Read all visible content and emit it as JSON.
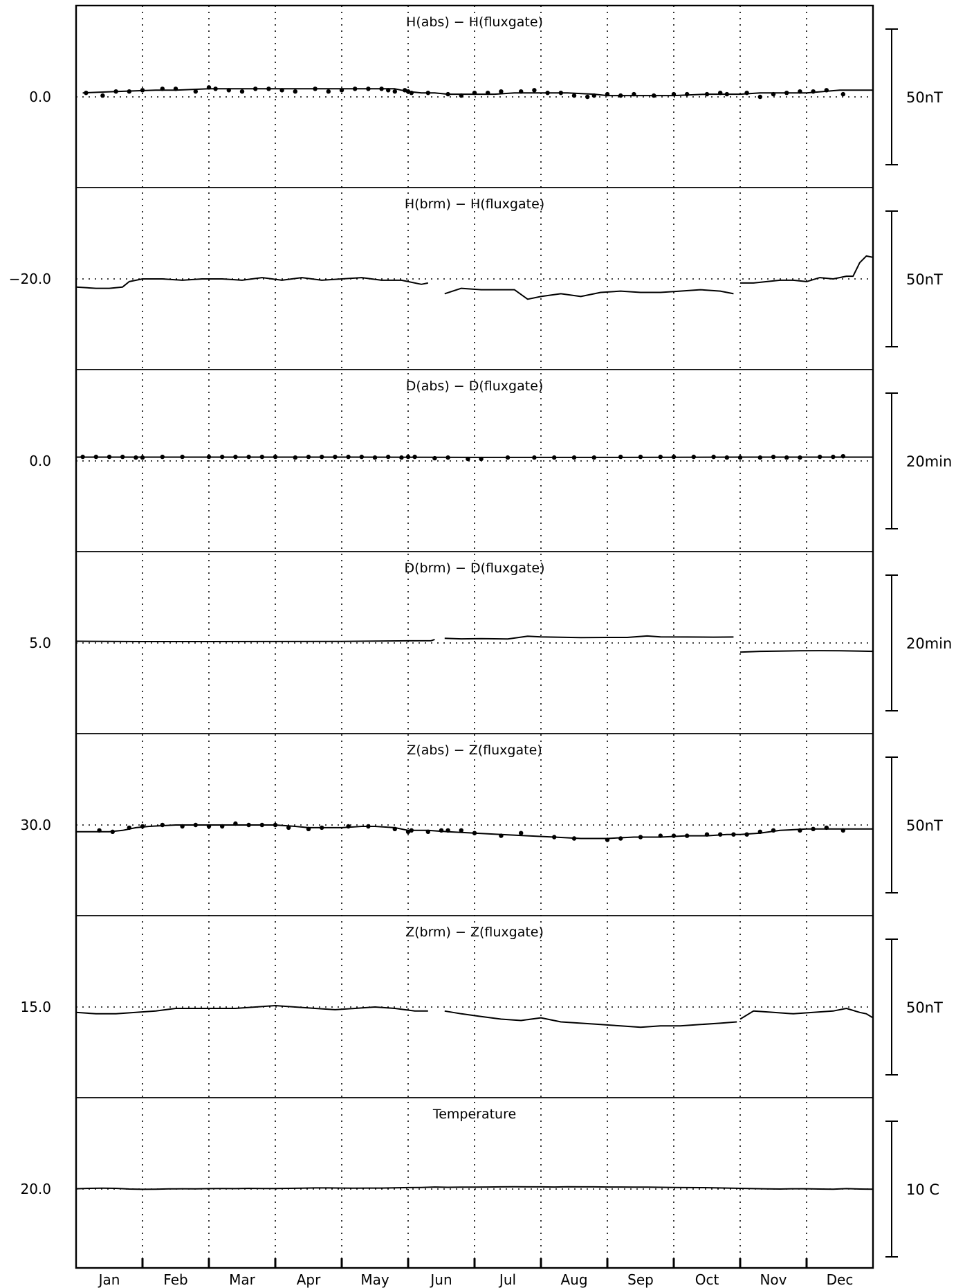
{
  "chart_data": {
    "type": "line",
    "months": [
      "Jan",
      "Feb",
      "Mar",
      "Apr",
      "May",
      "Jun",
      "Jul",
      "Aug",
      "Sep",
      "Oct",
      "Nov",
      "Dec"
    ],
    "panels": [
      {
        "title": "H(abs) − H(fluxgate)",
        "ref_label": "0.0",
        "ref_value": 0.0,
        "scale_label": "50nT",
        "scale_span": 50,
        "series": [
          {
            "kind": "line",
            "x": [
              0.1,
              0.6,
              1.2,
              1.5,
              2.0,
              2.2,
              2.4,
              3.0,
              3.5,
              4.0,
              4.4,
              4.8,
              4.9,
              5.0,
              5.2,
              5.4,
              5.6,
              5.8,
              6.0,
              6.3,
              6.6,
              7.0,
              7.2,
              7.4,
              7.8,
              8.0,
              8.3,
              8.6,
              9.0,
              9.5,
              9.9,
              10.0,
              10.3,
              10.7,
              11.0,
              11.5,
              12.0
            ],
            "y": [
              3,
              4,
              5,
              5,
              6,
              6,
              6,
              6,
              6,
              6,
              6,
              6,
              5,
              4,
              3,
              3,
              2,
              2,
              2,
              2,
              3,
              3,
              3,
              3,
              2,
              1,
              1,
              1,
              1,
              2,
              2,
              2,
              3,
              3,
              3,
              5,
              5
            ]
          },
          {
            "kind": "points",
            "x": [
              0.15,
              0.4,
              0.6,
              0.8,
              1.0,
              1.3,
              1.5,
              1.8,
              2.0,
              2.1,
              2.3,
              2.5,
              2.7,
              2.9,
              3.1,
              3.3,
              3.6,
              3.8,
              4.0,
              4.2,
              4.4,
              4.6,
              4.7,
              4.8,
              4.95,
              5.0,
              5.05,
              5.3,
              5.6,
              5.8,
              6.0,
              6.2,
              6.4,
              6.7,
              6.9,
              7.1,
              7.3,
              7.5,
              7.7,
              7.8,
              8.0,
              8.2,
              8.4,
              8.7,
              9.0,
              9.2,
              9.5,
              9.7,
              9.8,
              10.1,
              10.3,
              10.5,
              10.7,
              10.9,
              11.1,
              11.3,
              11.55
            ],
            "y": [
              3,
              1,
              4,
              4,
              5,
              6,
              6,
              4,
              7,
              6,
              5,
              4,
              6,
              6,
              5,
              4,
              6,
              4,
              5,
              6,
              6,
              6,
              5,
              4,
              5,
              4,
              3,
              3,
              2,
              1,
              3,
              3,
              4,
              4,
              5,
              3,
              3,
              1,
              0,
              1,
              2,
              1,
              2,
              1,
              2,
              2,
              2,
              3,
              2,
              3,
              0,
              2,
              3,
              4,
              4,
              5,
              2
            ]
          }
        ]
      },
      {
        "title": "H(brm) − H(fluxgate)",
        "ref_label": "−20.0",
        "ref_value": -20.0,
        "scale_label": "50nT",
        "scale_span": 50,
        "series": [
          {
            "kind": "line",
            "x": [
              0.0,
              0.3,
              0.5,
              0.7,
              0.8,
              1.0,
              1.3,
              1.6,
              1.9,
              2.2,
              2.5,
              2.8,
              3.1,
              3.4,
              3.7,
              4.0,
              4.3,
              4.6,
              4.9,
              5.2,
              5.3
            ],
            "y": [
              -26,
              -27,
              -27,
              -26,
              -22,
              -20,
              -20,
              -21,
              -20,
              -20,
              -21,
              -19,
              -21,
              -19,
              -21,
              -20,
              -19,
              -21,
              -21,
              -24,
              -23
            ]
          },
          {
            "kind": "line",
            "x": [
              5.55,
              5.8,
              6.1,
              6.4,
              6.6,
              6.8,
              7.0,
              7.3,
              7.6,
              7.9,
              8.2,
              8.5,
              8.8,
              9.1,
              9.4,
              9.7,
              9.9
            ],
            "y": [
              -31,
              -27,
              -28,
              -28,
              -28,
              -35,
              -33,
              -31,
              -33,
              -30,
              -29,
              -30,
              -30,
              -29,
              -28,
              -29,
              -31
            ]
          },
          {
            "kind": "line",
            "x": [
              10.0,
              10.2,
              10.4,
              10.6,
              10.8,
              11.0,
              11.2,
              11.4,
              11.6,
              11.7,
              11.8,
              11.9,
              12.0
            ],
            "y": [
              -23,
              -23,
              -22,
              -21,
              -21,
              -22,
              -19,
              -20,
              -18,
              -18,
              -8,
              -3,
              -4
            ]
          }
        ]
      },
      {
        "title": "D(abs) − D(fluxgate)",
        "ref_label": "0.0",
        "ref_value": 0.0,
        "scale_label": "20min",
        "scale_span": 20,
        "series": [
          {
            "kind": "line",
            "x": [
              0.0,
              2.0,
              4.0,
              6.0,
              8.0,
              10.0,
              12.0
            ],
            "y": [
              2.8,
              2.8,
              2.8,
              2.6,
              2.6,
              2.8,
              2.8
            ]
          },
          {
            "kind": "points",
            "x": [
              0.1,
              0.3,
              0.5,
              0.7,
              0.9,
              1.0,
              1.3,
              1.6,
              2.0,
              2.2,
              2.4,
              2.6,
              2.8,
              3.0,
              3.3,
              3.5,
              3.7,
              3.9,
              4.1,
              4.3,
              4.5,
              4.7,
              4.9,
              5.0,
              5.1,
              5.4,
              5.6,
              5.9,
              6.1,
              6.5,
              6.9,
              7.2,
              7.5,
              7.8,
              8.2,
              8.5,
              8.8,
              9.0,
              9.3,
              9.6,
              9.8,
              10.0,
              10.3,
              10.5,
              10.7,
              10.9,
              11.2,
              11.4,
              11.55
            ],
            "y": [
              3,
              3,
              3,
              3,
              2.5,
              2.5,
              3,
              3,
              3,
              3,
              3,
              3,
              3,
              3,
              2.5,
              3,
              3,
              3,
              3,
              3,
              2.5,
              3,
              2.5,
              3,
              3,
              2,
              2.5,
              1.5,
              1.5,
              2.5,
              2.5,
              2.5,
              2.5,
              2.5,
              3,
              3,
              3,
              3,
              3,
              3,
              2.5,
              2.5,
              2.5,
              3,
              2.5,
              2.5,
              3,
              3,
              3.5
            ]
          }
        ]
      },
      {
        "title": "D(brm) − D(fluxgate)",
        "ref_label": "5.0",
        "ref_value": 5.0,
        "scale_label": "20min",
        "scale_span": 20,
        "series": [
          {
            "kind": "line",
            "x": [
              0.0,
              1.0,
              2.0,
              3.0,
              4.0,
              5.0,
              5.35,
              5.4
            ],
            "y": [
              6.3,
              6.0,
              6.0,
              6.1,
              6.2,
              6.6,
              6.7,
              7.6
            ]
          },
          {
            "kind": "line",
            "x": [
              5.55,
              5.8,
              6.1,
              6.5,
              6.8,
              7.0,
              7.3,
              7.6,
              8.0,
              8.3,
              8.6,
              8.8,
              9.2,
              9.6,
              9.9
            ],
            "y": [
              8.5,
              8.0,
              8.2,
              7.9,
              10.0,
              9.5,
              9.2,
              9.0,
              9.1,
              9.1,
              10.2,
              9.5,
              9.4,
              9.3,
              9.4
            ]
          },
          {
            "kind": "line",
            "x": [
              10.0,
              10.3,
              10.6,
              10.9,
              11.2,
              11.5,
              11.8,
              12.0
            ],
            "y": [
              -1.8,
              -1.2,
              -1.0,
              -0.8,
              -0.7,
              -0.8,
              -1.0,
              -1.2
            ]
          }
        ]
      },
      {
        "title": "Z(abs) − Z(fluxgate)",
        "ref_label": "30.0",
        "ref_value": 30.0,
        "scale_label": "50nT",
        "scale_span": 50,
        "series": [
          {
            "kind": "line",
            "x": [
              0.0,
              0.5,
              0.7,
              0.9,
              1.1,
              1.5,
              2.0,
              2.5,
              3.0,
              3.3,
              3.5,
              3.8,
              4.0,
              4.3,
              4.5,
              4.8,
              5.0,
              5.3,
              5.6,
              6.0,
              6.4,
              6.8,
              7.2,
              7.6,
              8.0,
              8.4,
              8.8,
              9.2,
              9.5,
              9.8,
              10.0,
              10.3,
              10.6,
              11.0,
              11.5,
              12.0
            ],
            "y": [
              25,
              25,
              26,
              28,
              29,
              30,
              30,
              30,
              30,
              29,
              28,
              28,
              28,
              29,
              29,
              28,
              26,
              26,
              25,
              24,
              23,
              22,
              21,
              20,
              20,
              21,
              21,
              22,
              22,
              23,
              23,
              24,
              26,
              27,
              27,
              27
            ]
          },
          {
            "kind": "points",
            "x": [
              0.35,
              0.55,
              0.8,
              1.0,
              1.3,
              1.6,
              1.8,
              2.0,
              2.2,
              2.4,
              2.6,
              2.8,
              3.0,
              3.2,
              3.5,
              3.7,
              4.1,
              4.4,
              4.8,
              5.0,
              5.05,
              5.3,
              5.5,
              5.6,
              5.8,
              6.0,
              6.4,
              6.7,
              7.2,
              7.5,
              8.0,
              8.2,
              8.5,
              8.8,
              9.0,
              9.2,
              9.5,
              9.7,
              9.9,
              10.1,
              10.3,
              10.5,
              10.9,
              11.1,
              11.3,
              11.55
            ],
            "y": [
              26,
              25,
              28,
              29,
              30,
              29,
              30,
              29,
              29,
              31,
              30,
              30,
              30,
              28,
              27,
              28,
              29,
              29,
              27,
              25,
              26,
              25,
              26,
              26,
              26,
              24,
              22,
              24,
              21,
              20,
              19,
              20,
              21,
              22,
              22,
              22,
              23,
              23,
              23,
              23,
              25,
              26,
              26,
              27,
              28,
              26
            ]
          }
        ]
      },
      {
        "title": "Z(brm) − Z(fluxgate)",
        "ref_label": "15.0",
        "ref_value": 15.0,
        "scale_label": "50nT",
        "scale_span": 50,
        "series": [
          {
            "kind": "line",
            "x": [
              0.0,
              0.3,
              0.6,
              0.9,
              1.2,
              1.5,
              1.8,
              2.1,
              2.4,
              2.7,
              3.0,
              3.3,
              3.6,
              3.9,
              4.2,
              4.5,
              4.8,
              5.1,
              5.3
            ],
            "y": [
              11,
              10,
              10,
              11,
              12,
              14,
              14,
              14,
              14,
              15,
              16,
              15,
              14,
              13,
              14,
              15,
              14,
              12,
              12
            ]
          },
          {
            "kind": "line",
            "x": [
              5.55,
              5.8,
              6.1,
              6.4,
              6.7,
              7.0,
              7.3,
              7.6,
              7.9,
              8.2,
              8.5,
              8.8,
              9.1,
              9.4,
              9.7,
              9.95
            ],
            "y": [
              12,
              10,
              8,
              6,
              5,
              7,
              4,
              3,
              2,
              1,
              0,
              1,
              1,
              2,
              3,
              4
            ]
          },
          {
            "kind": "line",
            "x": [
              10.0,
              10.2,
              10.5,
              10.8,
              11.1,
              11.4,
              11.6,
              11.8,
              11.9,
              12.0
            ],
            "y": [
              6,
              12,
              11,
              10,
              11,
              12,
              14,
              11,
              10,
              7
            ]
          }
        ]
      },
      {
        "title": "Temperature",
        "ref_label": "20.0",
        "ref_value": 20.0,
        "scale_label": "10 C",
        "scale_span": 10,
        "series": [
          {
            "kind": "line",
            "x": [
              0.0,
              0.2,
              0.4,
              0.6,
              0.8,
              1.0,
              1.2,
              1.4,
              1.6,
              1.8,
              2.0,
              2.2,
              2.4,
              2.6,
              2.8,
              3.0,
              3.2,
              3.4,
              3.6,
              3.8,
              4.0,
              4.2,
              4.4,
              4.6,
              4.8,
              5.0,
              5.2,
              5.4,
              5.6,
              5.8,
              6.0,
              6.2,
              6.4,
              6.6,
              6.8,
              7.0,
              7.2,
              7.4,
              7.6,
              7.8,
              8.0,
              8.2,
              8.4,
              8.6,
              8.8,
              9.0,
              9.2,
              9.4,
              9.6,
              9.8,
              10.0,
              10.2,
              10.4,
              10.6,
              10.8,
              11.0,
              11.2,
              11.4,
              11.6,
              11.8,
              12.0
            ],
            "y": [
              20.2,
              20.5,
              20.6,
              20.5,
              20.0,
              19.8,
              19.9,
              20.1,
              20.2,
              20.1,
              20.3,
              20.4,
              20.3,
              20.5,
              20.4,
              20.4,
              20.5,
              20.6,
              20.8,
              20.8,
              20.7,
              20.6,
              20.7,
              20.7,
              20.9,
              21.1,
              21.2,
              21.5,
              21.3,
              21.4,
              21.4,
              21.5,
              21.6,
              21.7,
              21.6,
              21.6,
              21.5,
              21.7,
              21.6,
              21.6,
              21.5,
              21.5,
              21.4,
              21.4,
              21.3,
              21.2,
              21.1,
              21.0,
              20.9,
              20.7,
              20.5,
              20.3,
              20.1,
              20.0,
              20.2,
              20.2,
              20.0,
              19.9,
              20.3,
              20.0,
              19.9
            ]
          }
        ]
      }
    ]
  }
}
